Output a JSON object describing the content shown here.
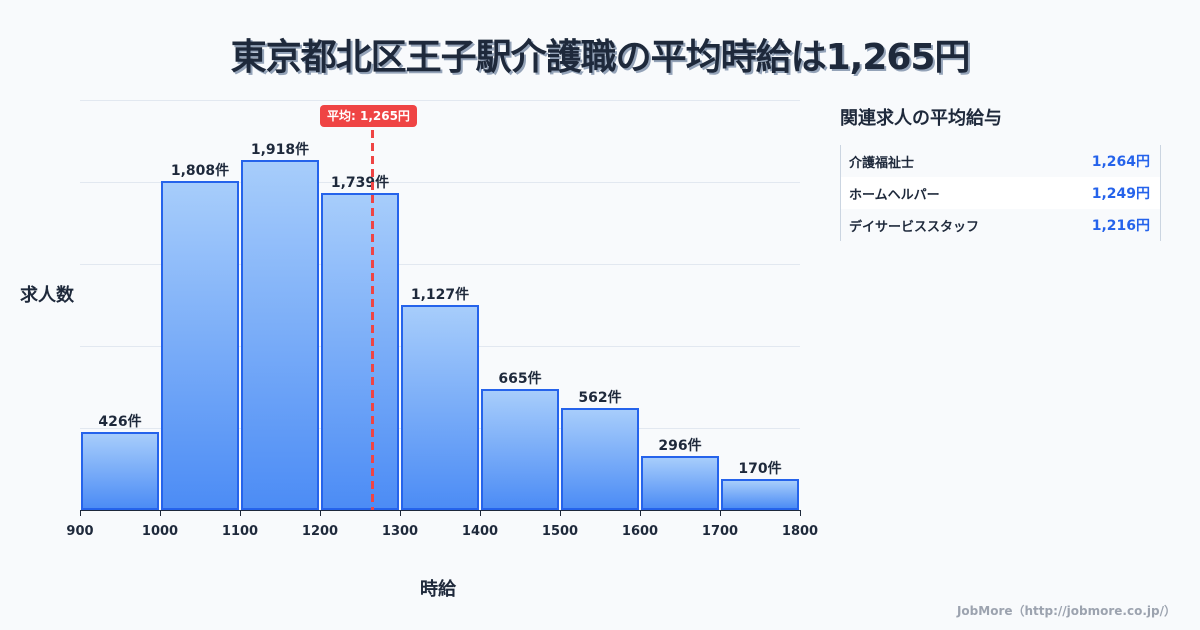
{
  "header": {
    "title": "東京都北区王子駅介護職の平均時給は1,265円"
  },
  "chart_data": {
    "type": "bar",
    "title": "東京都北区王子駅介護職の平均時給は1,265円",
    "xlabel": "時給",
    "ylabel": "求人数",
    "x_edges": [
      900,
      1000,
      1100,
      1200,
      1300,
      1400,
      1500,
      1600,
      1700,
      1800
    ],
    "categories": [
      "900-1000",
      "1000-1100",
      "1100-1200",
      "1200-1300",
      "1300-1400",
      "1400-1500",
      "1500-1600",
      "1600-1700",
      "1700-1800"
    ],
    "values": [
      426,
      1808,
      1918,
      1739,
      1127,
      665,
      562,
      296,
      170
    ],
    "value_labels": [
      "426件",
      "1,808件",
      "1,918件",
      "1,739件",
      "1,127件",
      "665件",
      "562件",
      "296件",
      "170件"
    ],
    "tick_labels": [
      "900",
      "1000",
      "1100",
      "1200",
      "1300",
      "1400",
      "1500",
      "1600",
      "1700",
      "1800"
    ],
    "xlim": [
      900,
      1800
    ],
    "ylim": [
      0,
      2250
    ],
    "grid": true,
    "annotations": [
      {
        "type": "vline",
        "x": 1265,
        "label": "平均: 1,265円",
        "color": "#ef4444",
        "style": "dashed"
      }
    ],
    "bar_color": "#60a5fa",
    "bar_edge_color": "#2563eb"
  },
  "average": {
    "label": "平均: 1,265円",
    "value": 1265
  },
  "related": {
    "title": "関連求人の平均給与",
    "rows": [
      {
        "name": "介護福祉士",
        "value": "1,264円"
      },
      {
        "name": "ホームヘルパー",
        "value": "1,249円"
      },
      {
        "name": "デイサービススタッフ",
        "value": "1,216円"
      }
    ]
  },
  "footer": {
    "credit": "JobMore（http://jobmore.co.jp/）"
  },
  "colors": {
    "accent": "#2563eb",
    "average_line": "#ef4444",
    "text": "#1e293b",
    "background": "#f8fafc"
  }
}
